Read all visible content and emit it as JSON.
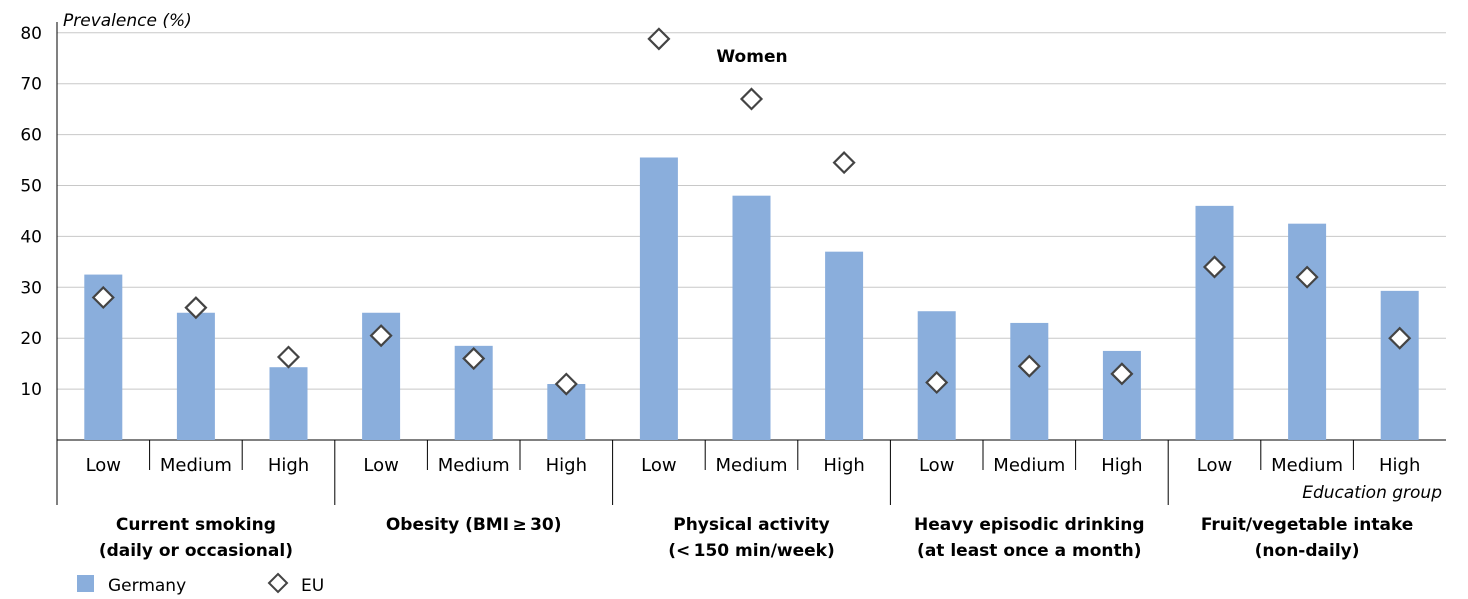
{
  "chart_data": {
    "type": "bar",
    "title": "Women",
    "ylabel": "Prevalence (%)",
    "xlabel": "Education group",
    "ylim": [
      0,
      80
    ],
    "yticks": [
      10,
      20,
      30,
      40,
      50,
      60,
      70,
      80
    ],
    "grid": true,
    "legend_position": "bottom-left",
    "groups": [
      {
        "label_line1": "Current smoking",
        "label_line2": "(daily or occasional)",
        "categories": [
          "Low",
          "Medium",
          "High"
        ],
        "germany": [
          32.5,
          25,
          14.3
        ],
        "eu": [
          28,
          26,
          16.3
        ]
      },
      {
        "label_line1": "Obesity (BMI ≥ 30)",
        "label_line2": "",
        "categories": [
          "Low",
          "Medium",
          "High"
        ],
        "germany": [
          25,
          18.5,
          11
        ],
        "eu": [
          20.5,
          16,
          11
        ]
      },
      {
        "label_line1": "Physical activity",
        "label_line2": "(< 150 min/week)",
        "categories": [
          "Low",
          "Medium",
          "High"
        ],
        "germany": [
          55.5,
          48,
          37
        ],
        "eu": [
          78.8,
          67,
          54.5
        ]
      },
      {
        "label_line1": "Heavy episodic drinking",
        "label_line2": "(at least once a month)",
        "categories": [
          "Low",
          "Medium",
          "High"
        ],
        "germany": [
          25.3,
          23,
          17.5
        ],
        "eu": [
          11.3,
          14.5,
          13
        ]
      },
      {
        "label_line1": "Fruit/vegetable intake",
        "label_line2": "(non-daily)",
        "categories": [
          "Low",
          "Medium",
          "High"
        ],
        "germany": [
          46,
          42.5,
          29.3
        ],
        "eu": [
          34,
          32,
          20
        ]
      }
    ],
    "series": [
      {
        "name": "Germany",
        "color": "#8aaedc",
        "marker": "bar"
      },
      {
        "name": "EU",
        "color": "#444444",
        "marker": "diamond"
      }
    ]
  }
}
